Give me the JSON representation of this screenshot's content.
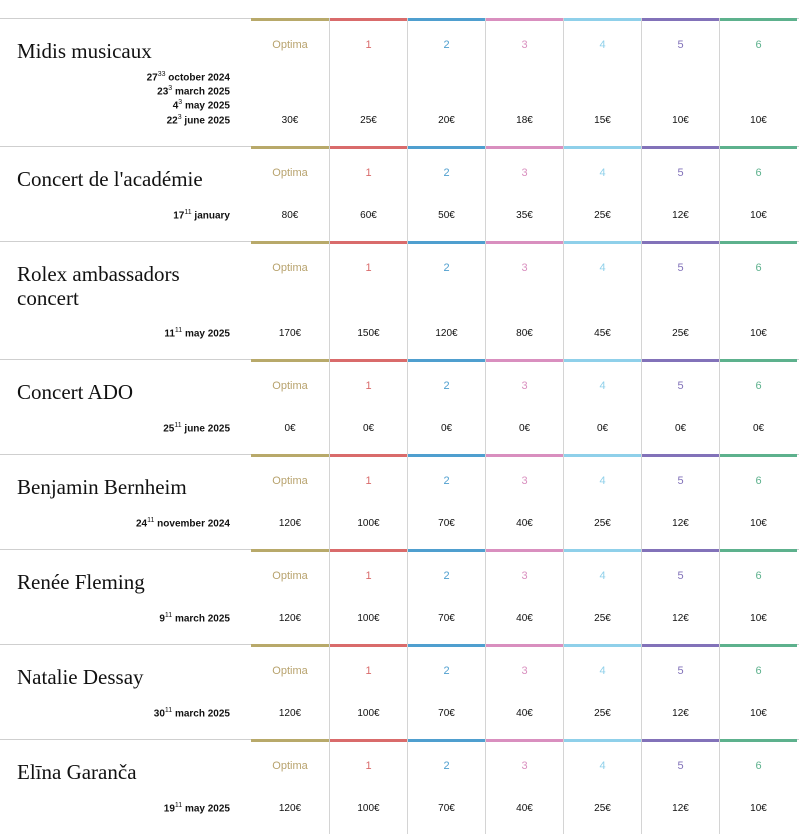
{
  "categories": [
    {
      "label": "Optima",
      "color": "#b8a96a",
      "text_color": "#b8a36e"
    },
    {
      "label": "1",
      "color": "#d96b6b",
      "text_color": "#d96b6b"
    },
    {
      "label": "2",
      "color": "#4f9fcf",
      "text_color": "#4f9fcf"
    },
    {
      "label": "3",
      "color": "#d98fbf",
      "text_color": "#d98fbf"
    },
    {
      "label": "4",
      "color": "#8fd0ea",
      "text_color": "#8fd0ea"
    },
    {
      "label": "5",
      "color": "#8272b9",
      "text_color": "#8272b9"
    },
    {
      "label": "6",
      "color": "#5db18d",
      "text_color": "#5db18d"
    }
  ],
  "concerts": [
    {
      "title": "Midis musicaux",
      "dates": [
        {
          "day": "27",
          "sup": "33",
          "rest": " october 2024"
        },
        {
          "day": "23",
          "sup": "3",
          "rest": " march 2025"
        },
        {
          "day": "4",
          "sup": "3",
          "rest": " may 2025"
        },
        {
          "day": "22",
          "sup": "3",
          "rest": " june 2025"
        }
      ],
      "prices": [
        "30€",
        "25€",
        "20€",
        "18€",
        "15€",
        "10€",
        "10€"
      ]
    },
    {
      "title": "Concert de l'académie",
      "dates": [
        {
          "day": "17",
          "sup": "11",
          "rest": " january"
        }
      ],
      "prices": [
        "80€",
        "60€",
        "50€",
        "35€",
        "25€",
        "12€",
        "10€"
      ]
    },
    {
      "title": "Rolex ambassadors concert",
      "dates": [
        {
          "day": "11",
          "sup": "11",
          "rest": " may 2025"
        }
      ],
      "prices": [
        "170€",
        "150€",
        "120€",
        "80€",
        "45€",
        "25€",
        "10€"
      ]
    },
    {
      "title": "Concert ADO",
      "dates": [
        {
          "day": "25",
          "sup": "11",
          "rest": " june 2025"
        }
      ],
      "prices": [
        "0€",
        "0€",
        "0€",
        "0€",
        "0€",
        "0€",
        "0€"
      ]
    },
    {
      "title": "Benjamin Bernheim",
      "dates": [
        {
          "day": "24",
          "sup": "11",
          "rest": " november 2024"
        }
      ],
      "prices": [
        "120€",
        "100€",
        "70€",
        "40€",
        "25€",
        "12€",
        "10€"
      ]
    },
    {
      "title": "Renée Fleming",
      "dates": [
        {
          "day": "9",
          "sup": "11",
          "rest": " march 2025"
        }
      ],
      "prices": [
        "120€",
        "100€",
        "70€",
        "40€",
        "25€",
        "12€",
        "10€"
      ]
    },
    {
      "title": "Natalie Dessay",
      "dates": [
        {
          "day": "30",
          "sup": "11",
          "rest": " march 2025"
        }
      ],
      "prices": [
        "120€",
        "100€",
        "70€",
        "40€",
        "25€",
        "12€",
        "10€"
      ]
    },
    {
      "title": "Elīna Garanča",
      "dates": [
        {
          "day": "19",
          "sup": "11",
          "rest": " may 2025"
        }
      ],
      "prices": [
        "120€",
        "100€",
        "70€",
        "40€",
        "25€",
        "12€",
        "10€"
      ]
    }
  ]
}
